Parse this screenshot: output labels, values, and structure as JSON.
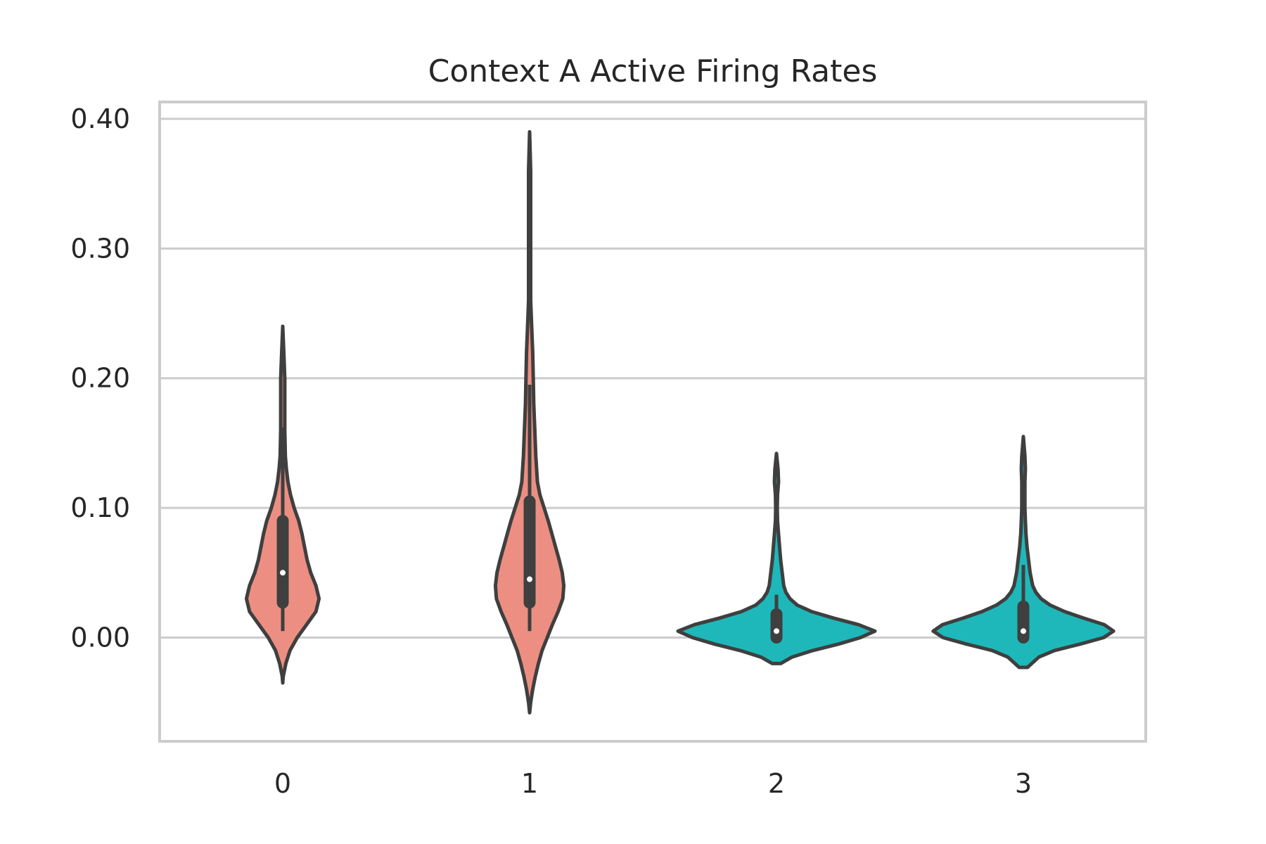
{
  "chart_data": {
    "type": "violin",
    "title": "Context A Active Firing Rates",
    "xlabel": "",
    "ylabel": "",
    "categories": [
      "0",
      "1",
      "2",
      "3"
    ],
    "ylim": [
      -0.08,
      0.413
    ],
    "yticks": [
      0.0,
      0.1,
      0.2,
      0.3,
      0.4
    ],
    "ytick_labels": [
      "0.00",
      "0.10",
      "0.20",
      "0.30",
      "0.40"
    ],
    "grid": true,
    "colors": [
      "#ec8f82",
      "#ec8f82",
      "#1eb8ba",
      "#1eb8ba"
    ],
    "outline_color": "#3f3f3f",
    "violins": [
      {
        "category": "0",
        "kde_min": -0.035,
        "kde_max": 0.24,
        "min": 0.005,
        "q1": 0.027,
        "median": 0.05,
        "q3": 0.09,
        "max": 0.162,
        "profile": [
          [
            -0.035,
            0.0
          ],
          [
            -0.03,
            0.01
          ],
          [
            -0.02,
            0.06
          ],
          [
            -0.01,
            0.14
          ],
          [
            0.0,
            0.28
          ],
          [
            0.01,
            0.46
          ],
          [
            0.02,
            0.64
          ],
          [
            0.03,
            0.7
          ],
          [
            0.04,
            0.64
          ],
          [
            0.05,
            0.54
          ],
          [
            0.06,
            0.47
          ],
          [
            0.07,
            0.42
          ],
          [
            0.08,
            0.37
          ],
          [
            0.09,
            0.31
          ],
          [
            0.1,
            0.22
          ],
          [
            0.11,
            0.15
          ],
          [
            0.12,
            0.1
          ],
          [
            0.13,
            0.07
          ],
          [
            0.14,
            0.05
          ],
          [
            0.16,
            0.04
          ],
          [
            0.18,
            0.04
          ],
          [
            0.2,
            0.04
          ],
          [
            0.22,
            0.02
          ],
          [
            0.24,
            0.0
          ]
        ]
      },
      {
        "category": "1",
        "kde_min": -0.058,
        "kde_max": 0.39,
        "min": 0.005,
        "q1": 0.027,
        "median": 0.045,
        "q3": 0.105,
        "max": 0.195,
        "profile": [
          [
            -0.058,
            0.0
          ],
          [
            -0.05,
            0.02
          ],
          [
            -0.04,
            0.06
          ],
          [
            -0.03,
            0.11
          ],
          [
            -0.02,
            0.17
          ],
          [
            -0.01,
            0.24
          ],
          [
            0.0,
            0.34
          ],
          [
            0.01,
            0.44
          ],
          [
            0.02,
            0.55
          ],
          [
            0.03,
            0.64
          ],
          [
            0.04,
            0.66
          ],
          [
            0.05,
            0.63
          ],
          [
            0.06,
            0.57
          ],
          [
            0.07,
            0.5
          ],
          [
            0.08,
            0.43
          ],
          [
            0.09,
            0.36
          ],
          [
            0.1,
            0.28
          ],
          [
            0.11,
            0.2
          ],
          [
            0.12,
            0.15
          ],
          [
            0.14,
            0.12
          ],
          [
            0.16,
            0.1
          ],
          [
            0.18,
            0.08
          ],
          [
            0.2,
            0.07
          ],
          [
            0.22,
            0.06
          ],
          [
            0.24,
            0.04
          ],
          [
            0.26,
            0.02
          ],
          [
            0.28,
            0.02
          ],
          [
            0.3,
            0.02
          ],
          [
            0.33,
            0.02
          ],
          [
            0.36,
            0.02
          ],
          [
            0.39,
            0.0
          ]
        ]
      },
      {
        "category": "2",
        "kde_min": -0.02,
        "kde_max": 0.142,
        "min": 0.0,
        "q1": 0.0,
        "median": 0.005,
        "q3": 0.018,
        "max": 0.033,
        "profile": [
          [
            -0.02,
            0.08
          ],
          [
            -0.015,
            0.3
          ],
          [
            -0.01,
            0.7
          ],
          [
            -0.005,
            1.2
          ],
          [
            0.0,
            1.62
          ],
          [
            0.005,
            1.9
          ],
          [
            0.01,
            1.58
          ],
          [
            0.015,
            1.1
          ],
          [
            0.02,
            0.68
          ],
          [
            0.025,
            0.4
          ],
          [
            0.03,
            0.26
          ],
          [
            0.035,
            0.18
          ],
          [
            0.04,
            0.14
          ],
          [
            0.05,
            0.11
          ],
          [
            0.06,
            0.08
          ],
          [
            0.07,
            0.06
          ],
          [
            0.08,
            0.04
          ],
          [
            0.09,
            0.02
          ],
          [
            0.1,
            0.015
          ],
          [
            0.11,
            0.02
          ],
          [
            0.12,
            0.04
          ],
          [
            0.13,
            0.03
          ],
          [
            0.142,
            0.0
          ]
        ]
      },
      {
        "category": "3",
        "kde_min": -0.023,
        "kde_max": 0.155,
        "min": 0.0,
        "q1": 0.0,
        "median": 0.005,
        "q3": 0.024,
        "max": 0.056,
        "profile": [
          [
            -0.023,
            0.08
          ],
          [
            -0.015,
            0.3
          ],
          [
            -0.01,
            0.6
          ],
          [
            -0.005,
            1.1
          ],
          [
            0.0,
            1.55
          ],
          [
            0.005,
            1.74
          ],
          [
            0.01,
            1.56
          ],
          [
            0.015,
            1.16
          ],
          [
            0.02,
            0.8
          ],
          [
            0.025,
            0.52
          ],
          [
            0.03,
            0.34
          ],
          [
            0.035,
            0.24
          ],
          [
            0.04,
            0.18
          ],
          [
            0.05,
            0.13
          ],
          [
            0.06,
            0.1
          ],
          [
            0.07,
            0.07
          ],
          [
            0.08,
            0.05
          ],
          [
            0.09,
            0.04
          ],
          [
            0.1,
            0.03
          ],
          [
            0.11,
            0.03
          ],
          [
            0.12,
            0.03
          ],
          [
            0.13,
            0.04
          ],
          [
            0.14,
            0.03
          ],
          [
            0.155,
            0.0
          ]
        ]
      }
    ]
  }
}
